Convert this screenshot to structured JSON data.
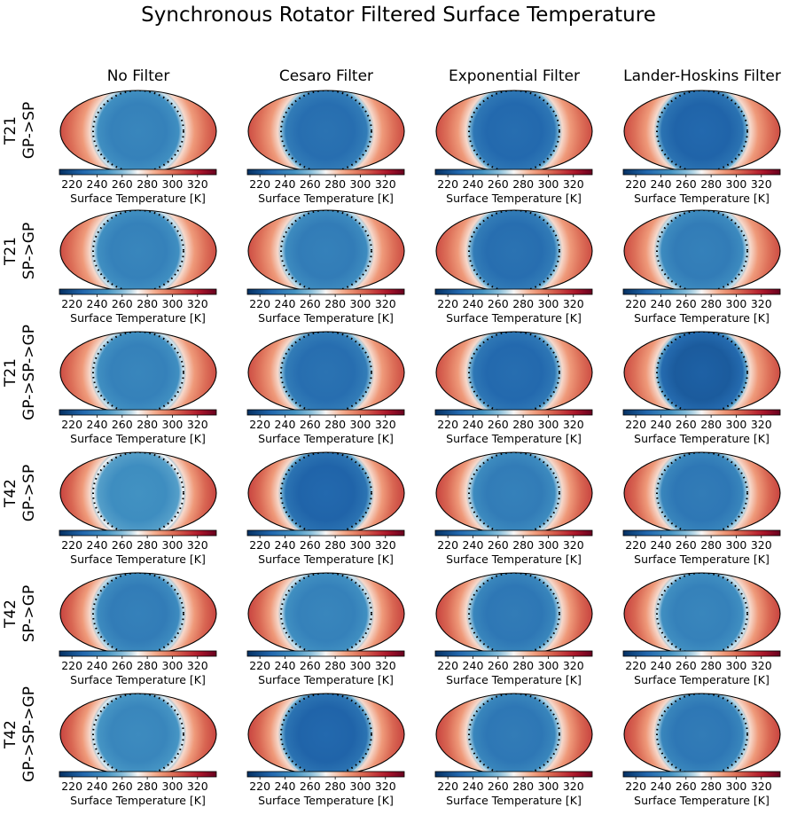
{
  "title": "Synchronous Rotator Filtered Surface Temperature",
  "columns": [
    "No Filter",
    "Cesaro Filter",
    "Exponential Filter",
    "Lander-Hoskins Filter"
  ],
  "rows": [
    {
      "line1": "T21",
      "line2": "GP->SP"
    },
    {
      "line1": "T21",
      "line2": "SP->GP"
    },
    {
      "line1": "T21",
      "line2": "GP->SP->GP"
    },
    {
      "line1": "T42",
      "line2": "GP->SP"
    },
    {
      "line1": "T42",
      "line2": "SP->GP"
    },
    {
      "line1": "T42",
      "line2": "GP->SP->GP"
    }
  ],
  "colors": {
    "cold": "#2b65a7",
    "cool": "#5a97c8",
    "mid": "#f7f7f7",
    "warm": "#f1a582",
    "hot": "#e7876b",
    "extreme": "#67001f"
  },
  "chart_data": {
    "type": "heatmap",
    "projection": "mollweide",
    "colormap": "RdBu_r",
    "colorbar": {
      "label": "Surface Temperature [K]",
      "ticks": [
        220,
        240,
        260,
        280,
        300,
        320
      ],
      "range": [
        210,
        335
      ]
    },
    "terminator": "dotted",
    "panels_nightside_temp_K": [
      [
        240,
        232,
        230,
        228
      ],
      [
        240,
        238,
        232,
        238
      ],
      [
        240,
        232,
        230,
        225
      ],
      [
        245,
        228,
        238,
        236
      ],
      [
        238,
        240,
        236,
        240
      ],
      [
        242,
        228,
        236,
        236
      ]
    ],
    "panels_limb_temp_K": [
      [
        300,
        300,
        300,
        300
      ],
      [
        300,
        300,
        300,
        300
      ],
      [
        300,
        300,
        300,
        300
      ],
      [
        302,
        302,
        302,
        302
      ],
      [
        302,
        302,
        302,
        302
      ],
      [
        302,
        302,
        302,
        302
      ]
    ]
  }
}
